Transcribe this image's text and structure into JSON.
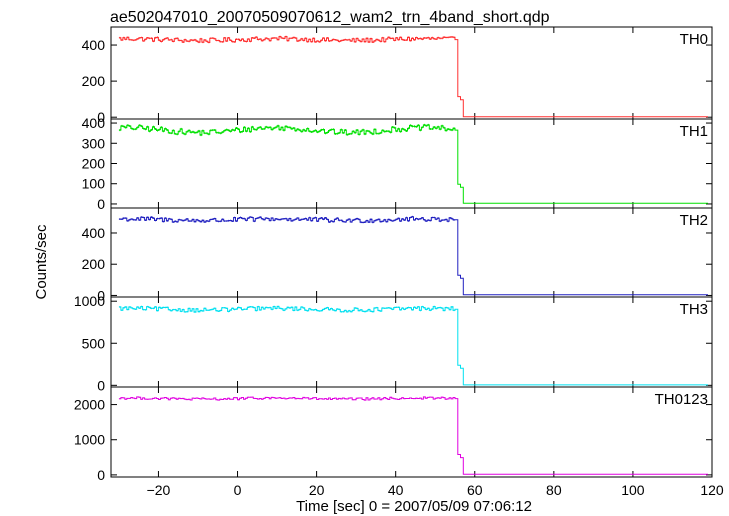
{
  "chart_data": {
    "type": "line",
    "title": "ae502047010_20070509070612_wam2_trn_4band_short.qdp",
    "xlabel": "Time [sec] 0 = 2007/05/09 07:06:12",
    "ylabel": "Counts/sec",
    "xlim": [
      -32,
      120
    ],
    "x_ticks": [
      -20,
      0,
      20,
      40,
      60,
      80,
      100,
      120
    ],
    "x_tick_labels": [
      "−20",
      "0",
      "20",
      "40",
      "60",
      "80",
      "100",
      "120"
    ],
    "drop_profile": [
      {
        "t": 55.0,
        "frac": 1.0
      },
      {
        "t": 55.7,
        "frac": 0.26
      },
      {
        "t": 56.4,
        "frac": 0.22
      },
      {
        "t": 57.1,
        "frac": 0.0
      }
    ],
    "panels": [
      {
        "name": "TH0",
        "color": "#ff3030",
        "ylim": [
          -10,
          500
        ],
        "yticks": [
          0,
          200,
          400
        ],
        "ytick_labels": [
          "0",
          "200",
          "400"
        ],
        "level": 430,
        "noise": 13,
        "wave": 5,
        "post": 3
      },
      {
        "name": "TH1",
        "color": "#00e000",
        "ylim": [
          -20,
          420
        ],
        "yticks": [
          0,
          100,
          200,
          300,
          400
        ],
        "ytick_labels": [
          "0",
          "100",
          "200",
          "300",
          "400"
        ],
        "level": 365,
        "noise": 14,
        "wave": 12,
        "post": 3
      },
      {
        "name": "TH2",
        "color": "#2020c0",
        "ylim": [
          -10,
          560
        ],
        "yticks": [
          0,
          200,
          400
        ],
        "ytick_labels": [
          "0",
          "200",
          "400"
        ],
        "level": 485,
        "noise": 15,
        "wave": 5,
        "post": 5
      },
      {
        "name": "TH3",
        "color": "#00e0f0",
        "ylim": [
          -20,
          1050
        ],
        "yticks": [
          0,
          500,
          1000
        ],
        "ytick_labels": [
          "0",
          "500",
          "1000"
        ],
        "level": 905,
        "noise": 25,
        "wave": 10,
        "post": 5
      },
      {
        "name": "TH0123",
        "color": "#e000e0",
        "ylim": [
          -60,
          2500
        ],
        "yticks": [
          0,
          1000,
          2000
        ],
        "ytick_labels": [
          "0",
          "1000",
          "2000"
        ],
        "level": 2170,
        "noise": 35,
        "wave": 15,
        "post": 20
      }
    ]
  }
}
